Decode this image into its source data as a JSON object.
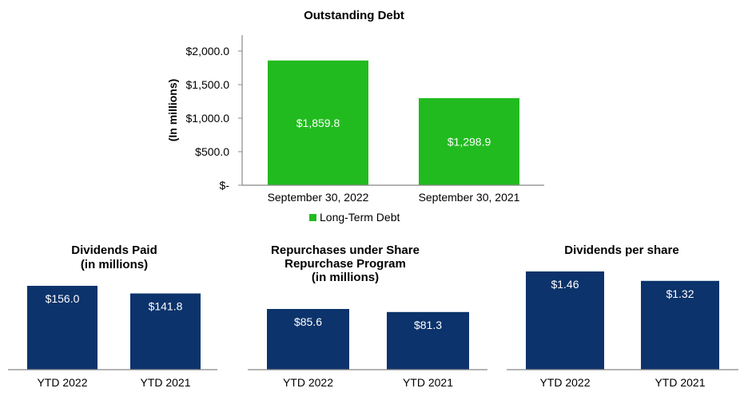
{
  "chart_data": [
    {
      "type": "bar",
      "title": "Outstanding Debt",
      "ylabel": "(In millions)",
      "categories": [
        "September 30, 2022",
        "September 30, 2021"
      ],
      "series": [
        {
          "name": "Long-Term Debt",
          "values": [
            1859.8,
            1298.9
          ],
          "labels": [
            "$1,859.8",
            "$1,298.9"
          ]
        }
      ],
      "ylim": [
        0,
        2000
      ],
      "yticks": [
        0,
        500,
        1000,
        1500,
        2000
      ],
      "ytick_labels": [
        "$-",
        "$500.0",
        "$1,000.0",
        "$1,500.0",
        "$2,000.0"
      ],
      "legend": "bottom",
      "grid": false,
      "color": "#21bb1f"
    },
    {
      "type": "bar",
      "title": [
        "Dividends Paid",
        "(in millions)"
      ],
      "categories": [
        "YTD 2022",
        "YTD 2021"
      ],
      "series": [
        {
          "values": [
            156.0,
            141.8
          ],
          "labels": [
            "$156.0",
            "$141.8"
          ]
        }
      ],
      "grid": false,
      "color": "#0c336b"
    },
    {
      "type": "bar",
      "title": [
        "Repurchases under Share",
        "Repurchase Program",
        "(in millions)"
      ],
      "categories": [
        "YTD 2022",
        "YTD 2021"
      ],
      "series": [
        {
          "values": [
            85.6,
            81.3
          ],
          "labels": [
            "$85.6",
            "$81.3"
          ]
        }
      ],
      "grid": false,
      "color": "#0c336b"
    },
    {
      "type": "bar",
      "title": "Dividends per share",
      "categories": [
        "YTD 2022",
        "YTD 2021"
      ],
      "series": [
        {
          "values": [
            1.46,
            1.32
          ],
          "labels": [
            "$1.46",
            "$1.32"
          ]
        }
      ],
      "grid": false,
      "color": "#0c336b"
    }
  ]
}
